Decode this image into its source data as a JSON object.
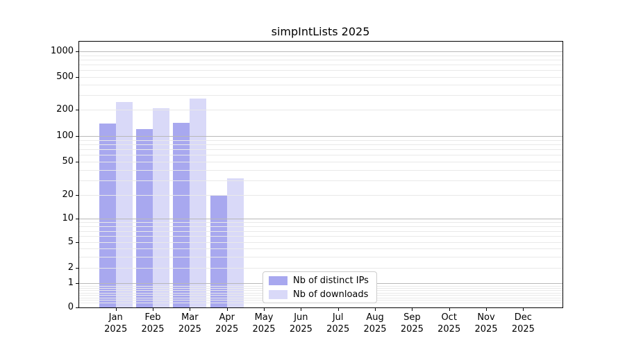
{
  "figure": {
    "title": "simpIntLists 2025"
  },
  "axes": {
    "y_tick_labels": [
      "1000",
      "500",
      "200",
      "100",
      "50",
      "20",
      "10",
      "5",
      "2",
      "1",
      "0"
    ],
    "x_tick_months": [
      "Jan",
      "Feb",
      "Mar",
      "Apr",
      "May",
      "Jun",
      "Jul",
      "Aug",
      "Sep",
      "Oct",
      "Nov",
      "Dec"
    ],
    "x_tick_year": "2025"
  },
  "legend": {
    "items": [
      {
        "label": "Nb of distinct IPs",
        "color": "#a8a8ef"
      },
      {
        "label": "Nb of downloads",
        "color": "#d9d9f8"
      }
    ]
  },
  "colors": {
    "bar_distinct_ips": "#a8a8ef",
    "bar_downloads": "#d9d9f8",
    "grid_major": "#b8b8b8",
    "grid_minor": "#e9e9e9",
    "spine": "#000000",
    "background": "#ffffff"
  },
  "chart_data": {
    "type": "bar",
    "title": "simpIntLists 2025",
    "categories": [
      "Jan 2025",
      "Feb 2025",
      "Mar 2025",
      "Apr 2025",
      "May 2025",
      "Jun 2025",
      "Jul 2025",
      "Aug 2025",
      "Sep 2025",
      "Oct 2025",
      "Nov 2025",
      "Dec 2025"
    ],
    "series": [
      {
        "name": "Nb of distinct IPs",
        "color": "#a8a8ef",
        "values": [
          138,
          120,
          142,
          20,
          0,
          0,
          0,
          0,
          0,
          0,
          0,
          0
        ]
      },
      {
        "name": "Nb of downloads",
        "color": "#d9d9f8",
        "values": [
          250,
          210,
          272,
          32,
          0,
          0,
          0,
          0,
          0,
          0,
          0,
          0
        ]
      }
    ],
    "xlabel": "",
    "ylabel": "",
    "yscale": "log-like (asinh), labeled ticks 0,1,2,5,10,20,50,100,200,500,1000",
    "ylim": [
      0,
      1300
    ],
    "grid": "horizontal only; light minor lines (2-9 pattern per decade), darker major lines at 1,10,100,1000",
    "legend_position": "inside plot, lower center-left",
    "minor_grid_values": [
      0.2,
      0.3,
      0.4,
      0.5,
      0.6,
      0.7,
      0.8,
      0.9,
      2,
      3,
      4,
      5,
      6,
      7,
      8,
      9,
      20,
      30,
      40,
      50,
      60,
      70,
      80,
      90,
      200,
      300,
      400,
      500,
      600,
      700,
      800,
      900
    ],
    "major_grid_values": [
      1,
      10,
      100,
      1000
    ]
  }
}
